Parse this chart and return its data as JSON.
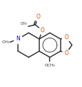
{
  "bg_color": "#ffffff",
  "bond_color": "#303030",
  "o_color": "#cc4400",
  "n_color": "#0000cc",
  "lw": 1.1,
  "figsize": [
    1.19,
    1.27
  ],
  "dpi": 100,
  "xlim": [
    0.0,
    1.0
  ],
  "ylim": [
    0.0,
    1.0
  ]
}
